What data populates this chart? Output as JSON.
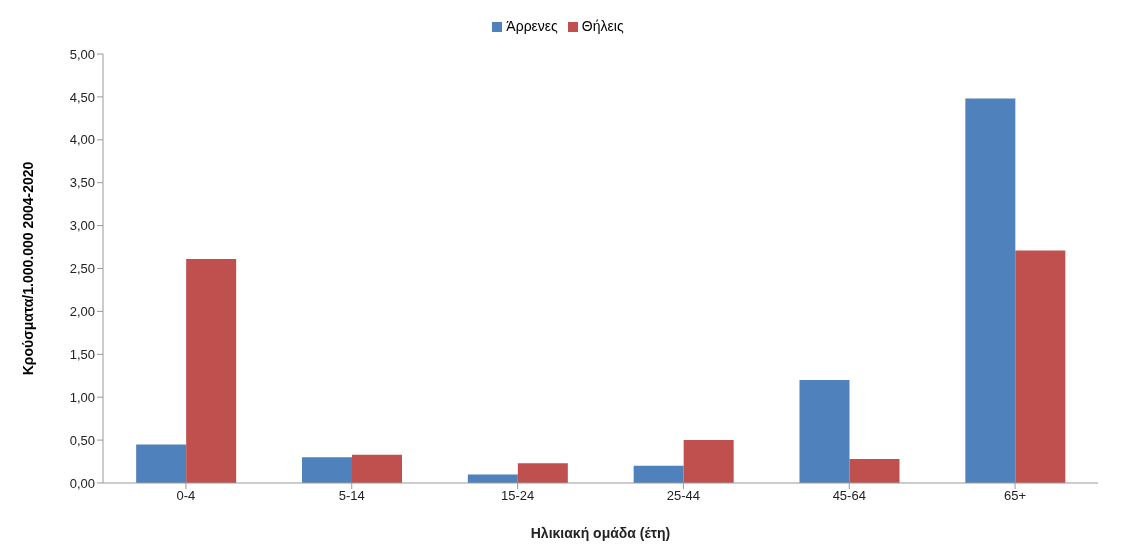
{
  "chart_data": {
    "type": "bar",
    "xlabel": "Ηλικιακή ομάδα (έτη)",
    "ylabel": "Κρούσματα/1.000.000  2004-2020",
    "categories": [
      "0-4",
      "5-14",
      "15-24",
      "25-44",
      "45-64",
      "65+"
    ],
    "series": [
      {
        "name": "Άρρενες",
        "color": "#4f81bd",
        "values": [
          0.45,
          0.3,
          0.1,
          0.2,
          1.2,
          4.48
        ]
      },
      {
        "name": "Θήλεις",
        "color": "#c0504d",
        "values": [
          2.61,
          0.33,
          0.23,
          0.5,
          0.28,
          2.71
        ]
      }
    ],
    "ylim": [
      0,
      5
    ],
    "yticks": [
      {
        "value": 0,
        "label": "0,00"
      },
      {
        "value": 0.5,
        "label": "0,50"
      },
      {
        "value": 1,
        "label": "1,00"
      },
      {
        "value": 1.5,
        "label": "1,50"
      },
      {
        "value": 2,
        "label": "2,00"
      },
      {
        "value": 2.5,
        "label": "2,50"
      },
      {
        "value": 3,
        "label": "3,00"
      },
      {
        "value": 3.5,
        "label": "3,50"
      },
      {
        "value": 4,
        "label": "4,00"
      },
      {
        "value": 4.5,
        "label": "4,50"
      },
      {
        "value": 5,
        "label": "5,00"
      }
    ],
    "grid": false,
    "legend": "top"
  }
}
